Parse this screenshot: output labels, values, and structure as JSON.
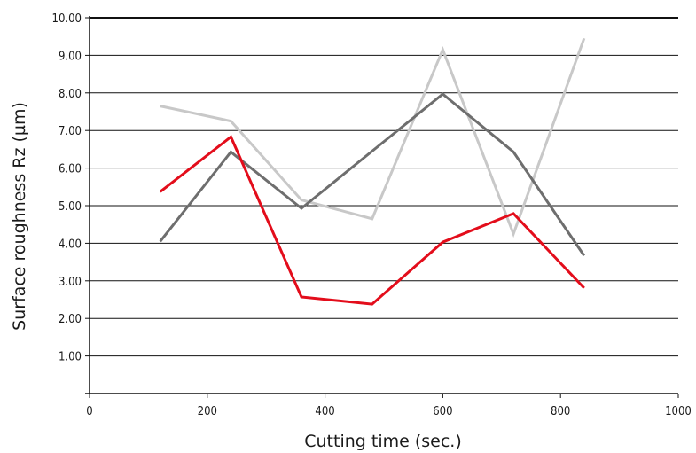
{
  "chart_data": {
    "type": "line",
    "xlabel": "Cutting time (sec.)",
    "ylabel": "Surface roughness Rz (µm)",
    "xlim": [
      0,
      1000
    ],
    "ylim": [
      0,
      10
    ],
    "x_ticks": [
      0,
      200,
      400,
      600,
      800,
      1000
    ],
    "x_tick_labels": [
      "0",
      "200",
      "400",
      "600",
      "800",
      "1000"
    ],
    "y_ticks": [
      1,
      2,
      3,
      4,
      5,
      6,
      7,
      8,
      9,
      10
    ],
    "y_tick_labels": [
      "1.00",
      "2.00",
      "3.00",
      "4.00",
      "5.00",
      "6.00",
      "7.00",
      "8.00",
      "9.00",
      "10.00"
    ],
    "grid": "horizontal",
    "legend": "none",
    "series": [
      {
        "color": "#c8c8c8",
        "x": [
          120,
          240,
          360,
          480,
          600,
          720,
          840
        ],
        "y": [
          7.65,
          7.25,
          5.15,
          4.65,
          9.15,
          4.25,
          9.45
        ]
      },
      {
        "color": "#6e6e6e",
        "x": [
          120,
          240,
          360,
          480,
          600,
          720,
          840
        ],
        "y": [
          4.05,
          6.43,
          4.93,
          6.45,
          7.97,
          6.43,
          3.67
        ]
      },
      {
        "color": "#e30d1b",
        "x": [
          120,
          240,
          360,
          480,
          600,
          720,
          840
        ],
        "y": [
          5.37,
          6.83,
          2.57,
          2.38,
          4.03,
          4.79,
          2.81
        ]
      }
    ]
  }
}
